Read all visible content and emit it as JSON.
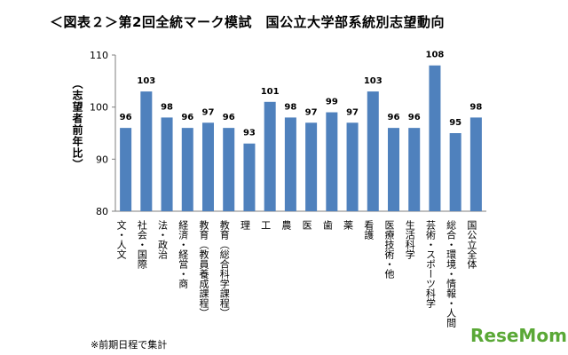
{
  "chart_data": {
    "type": "bar",
    "title": "＜図表２＞第2回全統マーク模試　国公立大学部系統別志望動向",
    "ylabel": "（志望者前年比）",
    "xlabel": "",
    "ylim": [
      80,
      110
    ],
    "yticks": [
      80,
      90,
      100,
      110
    ],
    "grid": false,
    "categories": [
      "文・人文",
      "社会・国際",
      "法・政治",
      "経済・経営・商",
      "教育（教員養成課程）",
      "教育（総合科学課程）",
      "理",
      "工",
      "農",
      "医",
      "歯",
      "薬",
      "看護",
      "医療技術・他",
      "生活科学",
      "芸術・スポーツ科学",
      "総合・環境・情報・人間",
      "国公立全体"
    ],
    "values": [
      96,
      103,
      98,
      96,
      97,
      96,
      93,
      101,
      98,
      97,
      99,
      97,
      103,
      96,
      96,
      108,
      95,
      98
    ],
    "value_labels": [
      "96",
      "103",
      "98",
      "96",
      "97",
      "96",
      "93",
      "101",
      "98",
      "97",
      "99",
      "97",
      "103",
      "96",
      "96",
      "108",
      "95",
      "98"
    ],
    "bar_color": "#4f81bd"
  },
  "footnote": "※前期日程で集計",
  "logo": "ReseMom"
}
